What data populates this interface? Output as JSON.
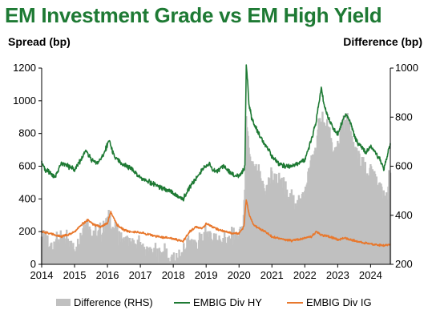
{
  "chart_data": {
    "type": "line",
    "title": "EM Investment Grade vs EM High Yield",
    "ylabel": "Spread (bp)",
    "y2label": "Difference (bp)",
    "xlim": [
      2014,
      2024.6
    ],
    "ylim": [
      0,
      1200
    ],
    "y2lim": [
      200,
      1000
    ],
    "xticks": [
      2014,
      2015,
      2016,
      2017,
      2018,
      2019,
      2020,
      2021,
      2022,
      2023,
      2024
    ],
    "yticks": [
      0,
      200,
      400,
      600,
      800,
      1000,
      1200
    ],
    "y2ticks": [
      200,
      400,
      600,
      800,
      1000
    ],
    "legend_position": "bottom",
    "colors": {
      "hy": "#1e7a34",
      "ig": "#e8782d",
      "diff": "#c0c0c0"
    },
    "series": [
      {
        "name": "Difference (RHS)",
        "axis": "right",
        "kind": "area",
        "x": [
          2014.0,
          2014.2,
          2014.4,
          2014.6,
          2014.8,
          2015.0,
          2015.2,
          2015.35,
          2015.5,
          2015.7,
          2015.9,
          2016.05,
          2016.2,
          2016.4,
          2016.6,
          2016.8,
          2017.0,
          2017.2,
          2017.4,
          2017.6,
          2017.8,
          2018.0,
          2018.2,
          2018.4,
          2018.6,
          2018.8,
          2019.0,
          2019.2,
          2019.4,
          2019.6,
          2019.8,
          2020.0,
          2020.15,
          2020.22,
          2020.28,
          2020.35,
          2020.45,
          2020.6,
          2020.8,
          2021.0,
          2021.2,
          2021.4,
          2021.6,
          2021.8,
          2022.0,
          2022.2,
          2022.35,
          2022.5,
          2022.6,
          2022.75,
          2022.9,
          2023.0,
          2023.15,
          2023.3,
          2023.45,
          2023.6,
          2023.75,
          2023.9,
          2024.0,
          2024.15,
          2024.3,
          2024.45,
          2024.6
        ],
        "values": [
          320,
          270,
          290,
          300,
          310,
          260,
          330,
          370,
          330,
          310,
          340,
          390,
          330,
          300,
          280,
          270,
          280,
          250,
          240,
          230,
          240,
          220,
          210,
          280,
          300,
          280,
          330,
          310,
          300,
          310,
          300,
          310,
          380,
          760,
          680,
          640,
          580,
          560,
          510,
          560,
          530,
          500,
          470,
          450,
          500,
          620,
          690,
          800,
          770,
          720,
          640,
          680,
          760,
          780,
          700,
          650,
          600,
          560,
          570,
          550,
          520,
          460,
          560
        ]
      },
      {
        "name": "EMBIG Div HY",
        "axis": "left",
        "kind": "line",
        "x": [
          2014.0,
          2014.1,
          2014.25,
          2014.4,
          2014.5,
          2014.6,
          2014.8,
          2015.0,
          2015.2,
          2015.35,
          2015.5,
          2015.7,
          2015.9,
          2016.05,
          2016.2,
          2016.4,
          2016.6,
          2016.8,
          2016.95,
          2017.1,
          2017.3,
          2017.5,
          2017.7,
          2017.9,
          2018.0,
          2018.1,
          2018.3,
          2018.5,
          2018.7,
          2018.9,
          2019.0,
          2019.1,
          2019.3,
          2019.5,
          2019.7,
          2019.85,
          2020.0,
          2020.1,
          2020.18,
          2020.22,
          2020.26,
          2020.3,
          2020.4,
          2020.55,
          2020.7,
          2020.85,
          2021.0,
          2021.2,
          2021.4,
          2021.6,
          2021.8,
          2022.0,
          2022.2,
          2022.35,
          2022.5,
          2022.6,
          2022.75,
          2022.9,
          2023.0,
          2023.15,
          2023.25,
          2023.4,
          2023.55,
          2023.7,
          2023.85,
          2024.0,
          2024.15,
          2024.3,
          2024.4,
          2024.5,
          2024.6
        ],
        "values": [
          620,
          580,
          560,
          530,
          570,
          620,
          600,
          580,
          640,
          700,
          640,
          620,
          680,
          760,
          660,
          620,
          600,
          570,
          540,
          520,
          500,
          480,
          460,
          450,
          430,
          420,
          400,
          470,
          530,
          580,
          600,
          610,
          560,
          600,
          570,
          540,
          540,
          560,
          600,
          1220,
          1120,
          980,
          880,
          820,
          760,
          720,
          660,
          620,
          600,
          600,
          620,
          640,
          760,
          880,
          1080,
          960,
          880,
          820,
          800,
          880,
          920,
          860,
          760,
          720,
          680,
          720,
          680,
          640,
          580,
          660,
          740
        ]
      },
      {
        "name": "EMBIG Div IG",
        "axis": "left",
        "kind": "line",
        "x": [
          2014.0,
          2014.2,
          2014.4,
          2014.6,
          2014.8,
          2015.0,
          2015.2,
          2015.4,
          2015.6,
          2015.8,
          2016.0,
          2016.1,
          2016.3,
          2016.5,
          2016.7,
          2016.9,
          2017.1,
          2017.3,
          2017.5,
          2017.7,
          2017.9,
          2018.1,
          2018.3,
          2018.5,
          2018.7,
          2018.9,
          2019.0,
          2019.2,
          2019.4,
          2019.6,
          2019.8,
          2020.0,
          2020.15,
          2020.22,
          2020.28,
          2020.35,
          2020.45,
          2020.6,
          2020.8,
          2021.0,
          2021.2,
          2021.4,
          2021.6,
          2021.8,
          2022.0,
          2022.2,
          2022.35,
          2022.5,
          2022.7,
          2022.9,
          2023.0,
          2023.2,
          2023.4,
          2023.6,
          2023.8,
          2024.0,
          2024.2,
          2024.4,
          2024.6
        ],
        "values": [
          200,
          190,
          180,
          170,
          180,
          200,
          240,
          270,
          240,
          230,
          250,
          320,
          240,
          210,
          200,
          195,
          190,
          180,
          170,
          165,
          160,
          150,
          140,
          200,
          230,
          220,
          250,
          230,
          210,
          200,
          190,
          190,
          230,
          400,
          330,
          280,
          240,
          220,
          200,
          170,
          160,
          150,
          145,
          150,
          160,
          170,
          200,
          180,
          170,
          160,
          150,
          160,
          150,
          140,
          130,
          125,
          120,
          115,
          120
        ]
      }
    ]
  }
}
